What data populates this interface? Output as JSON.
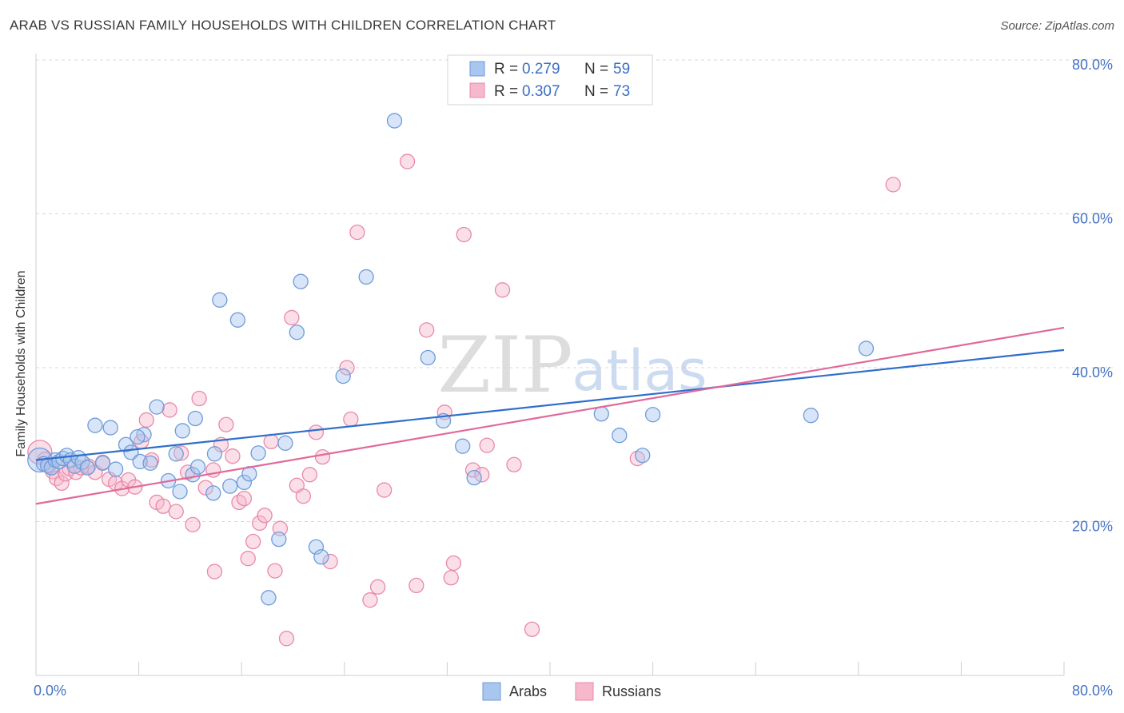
{
  "title": "ARAB VS RUSSIAN FAMILY HOUSEHOLDS WITH CHILDREN CORRELATION CHART",
  "source": "Source: ZipAtlas.com",
  "watermark": {
    "zip": "ZIP",
    "atlas": "atlas"
  },
  "legend": {
    "r_label": "R =",
    "n_label": "N =",
    "items": [
      {
        "series": "Arabs",
        "r": "0.279",
        "n": "59"
      },
      {
        "series": "Russians",
        "r": "0.307",
        "n": "73"
      }
    ]
  },
  "colors": {
    "arabs_fill": "#a9c6ef",
    "arabs_stroke": "#6e9bd8",
    "arabs_line": "#2f6fcc",
    "russians_fill": "#f6b8cb",
    "russians_stroke": "#e889a8",
    "russians_line": "#e0699a",
    "grid": "#d8d8d8",
    "tick_text": "#4472c4"
  },
  "chart_data": {
    "type": "scatter",
    "title": "ARAB VS RUSSIAN FAMILY HOUSEHOLDS WITH CHILDREN CORRELATION CHART",
    "xlabel": "",
    "ylabel": "Family Households with Children",
    "xlim": [
      0,
      80
    ],
    "ylim": [
      0,
      80
    ],
    "x_tick_labels": [
      "0.0%",
      "80.0%"
    ],
    "y_ticks": [
      {
        "value": 20,
        "label": "20.0%"
      },
      {
        "value": 40,
        "label": "40.0%"
      },
      {
        "value": 60,
        "label": "60.0%"
      },
      {
        "value": 80,
        "label": "80.0%"
      }
    ],
    "grid": true,
    "legend_position": "top-center",
    "series": [
      {
        "name": "Arabs",
        "r": 0.279,
        "n": 59,
        "trend": {
          "x": [
            0,
            80
          ],
          "y": [
            28.0,
            42.3
          ]
        },
        "points": [
          [
            0.3,
            28.0
          ],
          [
            0.6,
            27.5
          ],
          [
            0.9,
            27.3
          ],
          [
            1.2,
            27.0
          ],
          [
            1.5,
            28.0
          ],
          [
            1.8,
            27.8
          ],
          [
            2.1,
            28.2
          ],
          [
            2.4,
            28.6
          ],
          [
            2.7,
            28.0
          ],
          [
            3.0,
            27.2
          ],
          [
            3.3,
            28.3
          ],
          [
            3.6,
            27.7
          ],
          [
            4.0,
            27.0
          ],
          [
            4.6,
            32.5
          ],
          [
            5.2,
            27.6
          ],
          [
            5.8,
            32.2
          ],
          [
            6.2,
            26.8
          ],
          [
            7.0,
            30.0
          ],
          [
            7.4,
            29.0
          ],
          [
            8.1,
            27.8
          ],
          [
            8.4,
            31.3
          ],
          [
            8.9,
            27.6
          ],
          [
            9.4,
            34.9
          ],
          [
            10.3,
            25.3
          ],
          [
            10.9,
            28.8
          ],
          [
            11.2,
            23.9
          ],
          [
            11.4,
            31.8
          ],
          [
            12.2,
            26.1
          ],
          [
            12.4,
            33.4
          ],
          [
            12.6,
            27.1
          ],
          [
            13.8,
            23.7
          ],
          [
            13.9,
            28.8
          ],
          [
            14.3,
            48.8
          ],
          [
            15.1,
            24.6
          ],
          [
            15.7,
            46.2
          ],
          [
            16.2,
            25.1
          ],
          [
            16.6,
            26.2
          ],
          [
            17.3,
            28.9
          ],
          [
            18.1,
            10.1
          ],
          [
            18.9,
            17.7
          ],
          [
            19.4,
            30.2
          ],
          [
            20.3,
            44.6
          ],
          [
            20.6,
            51.2
          ],
          [
            21.8,
            16.7
          ],
          [
            22.2,
            15.4
          ],
          [
            23.9,
            38.9
          ],
          [
            25.7,
            51.8
          ],
          [
            27.9,
            72.1
          ],
          [
            30.5,
            41.3
          ],
          [
            31.7,
            33.1
          ],
          [
            33.2,
            29.8
          ],
          [
            34.1,
            25.7
          ],
          [
            44.0,
            34.0
          ],
          [
            45.4,
            31.2
          ],
          [
            47.2,
            28.6
          ],
          [
            48.0,
            33.9
          ],
          [
            60.3,
            33.8
          ],
          [
            64.6,
            42.5
          ],
          [
            7.9,
            31.0
          ]
        ]
      },
      {
        "name": "Russians",
        "r": 0.307,
        "n": 73,
        "trend": {
          "x": [
            0,
            80
          ],
          "y": [
            22.3,
            45.2
          ]
        },
        "points": [
          [
            0.3,
            29.0
          ],
          [
            0.7,
            28.1
          ],
          [
            1.0,
            27.2
          ],
          [
            1.3,
            26.5
          ],
          [
            1.6,
            25.6
          ],
          [
            2.0,
            25.0
          ],
          [
            2.3,
            26.2
          ],
          [
            2.6,
            26.9
          ],
          [
            3.1,
            26.4
          ],
          [
            3.5,
            27.0
          ],
          [
            4.1,
            27.2
          ],
          [
            4.6,
            26.4
          ],
          [
            5.2,
            27.7
          ],
          [
            5.7,
            25.5
          ],
          [
            6.2,
            25.0
          ],
          [
            6.7,
            24.3
          ],
          [
            7.2,
            25.4
          ],
          [
            7.7,
            24.5
          ],
          [
            8.2,
            30.4
          ],
          [
            8.6,
            33.2
          ],
          [
            9.0,
            28.0
          ],
          [
            9.4,
            22.5
          ],
          [
            9.9,
            22.0
          ],
          [
            10.4,
            34.5
          ],
          [
            10.9,
            21.3
          ],
          [
            11.3,
            28.9
          ],
          [
            11.8,
            26.4
          ],
          [
            12.2,
            19.6
          ],
          [
            12.7,
            36.0
          ],
          [
            13.2,
            24.4
          ],
          [
            13.8,
            26.7
          ],
          [
            13.9,
            13.5
          ],
          [
            14.4,
            30.0
          ],
          [
            14.8,
            32.6
          ],
          [
            15.3,
            28.5
          ],
          [
            15.8,
            22.5
          ],
          [
            16.2,
            23.0
          ],
          [
            16.5,
            15.2
          ],
          [
            16.9,
            17.4
          ],
          [
            17.4,
            19.8
          ],
          [
            17.8,
            20.8
          ],
          [
            18.3,
            30.4
          ],
          [
            18.6,
            13.6
          ],
          [
            19.0,
            19.1
          ],
          [
            19.5,
            4.8
          ],
          [
            19.9,
            46.5
          ],
          [
            20.3,
            24.7
          ],
          [
            20.8,
            23.3
          ],
          [
            21.3,
            26.1
          ],
          [
            21.8,
            31.6
          ],
          [
            22.3,
            28.4
          ],
          [
            22.9,
            14.8
          ],
          [
            24.2,
            40.0
          ],
          [
            24.5,
            33.3
          ],
          [
            25.0,
            57.6
          ],
          [
            26.0,
            9.8
          ],
          [
            26.6,
            11.5
          ],
          [
            27.1,
            24.1
          ],
          [
            28.9,
            66.8
          ],
          [
            29.6,
            11.7
          ],
          [
            30.4,
            44.9
          ],
          [
            31.8,
            34.2
          ],
          [
            32.3,
            12.7
          ],
          [
            32.5,
            14.6
          ],
          [
            33.3,
            57.3
          ],
          [
            34.0,
            26.7
          ],
          [
            34.7,
            26.1
          ],
          [
            35.1,
            29.9
          ],
          [
            36.3,
            50.1
          ],
          [
            37.2,
            27.4
          ],
          [
            38.6,
            6.0
          ],
          [
            46.8,
            28.2
          ],
          [
            66.7,
            63.8
          ]
        ]
      }
    ]
  }
}
